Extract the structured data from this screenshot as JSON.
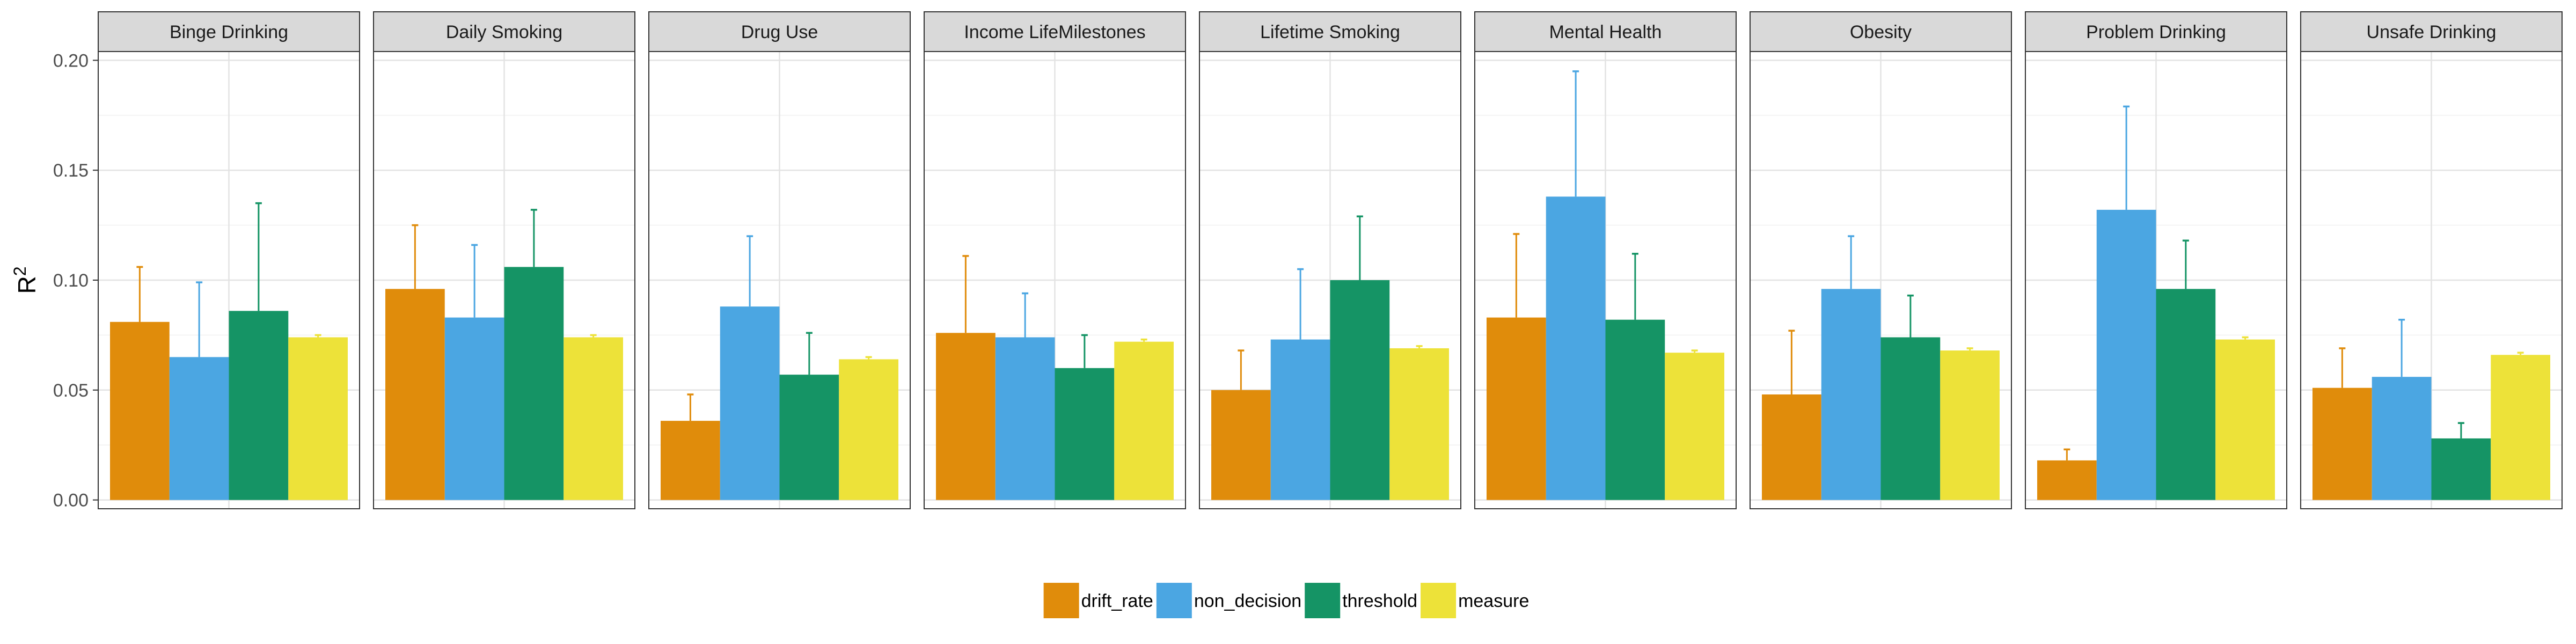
{
  "chart_data": {
    "type": "bar",
    "ylabel": "R",
    "ylabel_superscript": "2",
    "ylim": [
      -0.004,
      0.204
    ],
    "yticks": [
      0.0,
      0.05,
      0.1,
      0.15,
      0.2
    ],
    "ytick_labels": [
      "0.00",
      "0.05",
      "0.10",
      "0.15",
      "0.20"
    ],
    "grid": true,
    "legend_position": "bottom",
    "series": [
      {
        "name": "drift_rate",
        "color": "#E08C0B"
      },
      {
        "name": "non_decision",
        "color": "#4BA6E2"
      },
      {
        "name": "threshold",
        "color": "#159465"
      },
      {
        "name": "measure",
        "color": "#EDE239"
      }
    ],
    "panels": [
      {
        "title": "Binge Drinking",
        "values": [
          0.081,
          0.065,
          0.086,
          0.074
        ],
        "errors_upper": [
          0.106,
          0.099,
          0.135,
          0.075
        ]
      },
      {
        "title": "Daily Smoking",
        "values": [
          0.096,
          0.083,
          0.106,
          0.074
        ],
        "errors_upper": [
          0.125,
          0.116,
          0.132,
          0.075
        ]
      },
      {
        "title": "Drug Use",
        "values": [
          0.036,
          0.088,
          0.057,
          0.064
        ],
        "errors_upper": [
          0.048,
          0.12,
          0.076,
          0.065
        ]
      },
      {
        "title": "Income LifeMilestones",
        "values": [
          0.076,
          0.074,
          0.06,
          0.072
        ],
        "errors_upper": [
          0.111,
          0.094,
          0.075,
          0.073
        ]
      },
      {
        "title": "Lifetime Smoking",
        "values": [
          0.05,
          0.073,
          0.1,
          0.069
        ],
        "errors_upper": [
          0.068,
          0.105,
          0.129,
          0.07
        ]
      },
      {
        "title": "Mental Health",
        "values": [
          0.083,
          0.138,
          0.082,
          0.067
        ],
        "errors_upper": [
          0.121,
          0.195,
          0.112,
          0.068
        ]
      },
      {
        "title": "Obesity",
        "values": [
          0.048,
          0.096,
          0.074,
          0.068
        ],
        "errors_upper": [
          0.077,
          0.12,
          0.093,
          0.069
        ]
      },
      {
        "title": "Problem Drinking",
        "values": [
          0.018,
          0.132,
          0.096,
          0.073
        ],
        "errors_upper": [
          0.023,
          0.179,
          0.118,
          0.074
        ]
      },
      {
        "title": "Unsafe Drinking",
        "values": [
          0.051,
          0.056,
          0.028,
          0.066
        ],
        "errors_upper": [
          0.069,
          0.082,
          0.035,
          0.067
        ]
      }
    ]
  }
}
